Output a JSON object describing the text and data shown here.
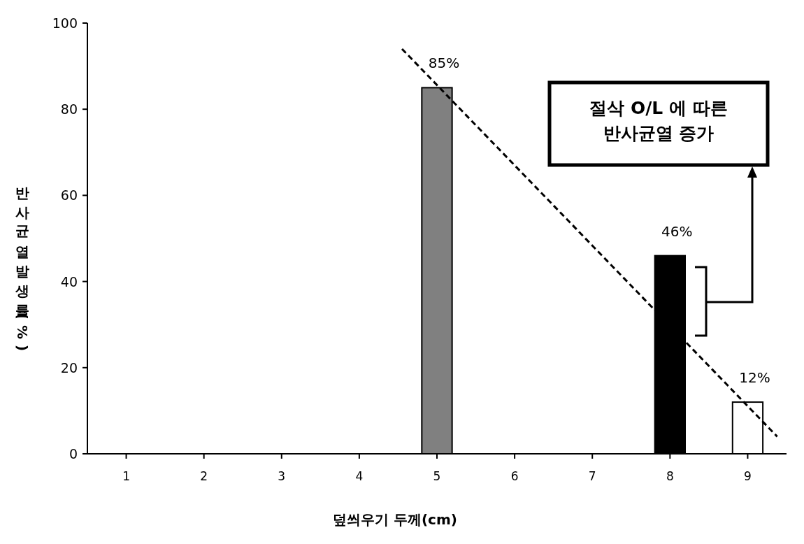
{
  "chart_data": {
    "type": "bar",
    "x": [
      5,
      8,
      9
    ],
    "xlim": [
      0.5,
      9.5
    ],
    "xticks": [
      1,
      2,
      3,
      4,
      5,
      6,
      7,
      8,
      9
    ],
    "ylim": [
      0,
      100
    ],
    "yticks": [
      0,
      20,
      40,
      60,
      80,
      100
    ],
    "xlabel": "덮씌우기 두께(cm)",
    "ylabel": "반사균열발생률(%)",
    "series": [
      {
        "values": [
          85,
          46,
          12
        ],
        "colors": [
          "#808080",
          "#000000",
          "#ffffff"
        ],
        "value_labels": [
          "85%",
          "46%",
          "12%"
        ]
      },
      {
        "type": "line",
        "x": [
          4.55,
          9.38
        ],
        "values": [
          94,
          4
        ],
        "color": "#000000",
        "line_style": "dashed"
      }
    ],
    "annotations": [
      "절삭 O/L 에 따른\n반사균열 증가"
    ]
  }
}
